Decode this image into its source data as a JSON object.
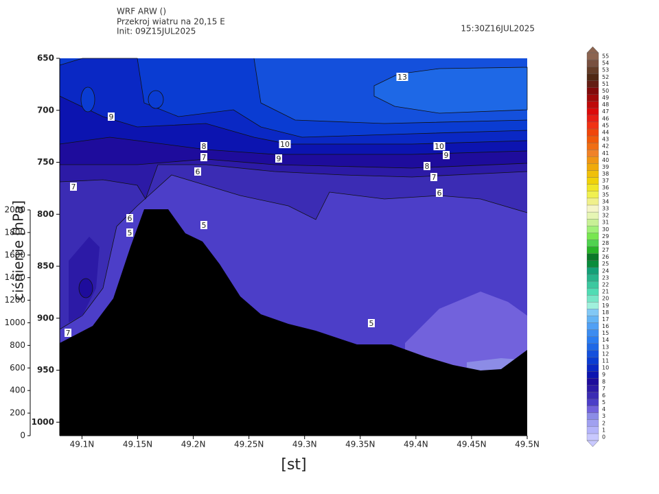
{
  "chart_data": {
    "type": "contour",
    "model": "WRF ARW ()",
    "title": "Przekroj wiatru na 20,15 E",
    "init": "Init: 09Z15JUL2025",
    "valid": "15:30Z16JUL2025",
    "xlabel": "[st]",
    "ylabel": "ciśnienie [hPa]",
    "xlim": [
      49.08,
      49.5
    ],
    "xticks": [
      {
        "value": 49.1,
        "label": "49.1N"
      },
      {
        "value": 49.15,
        "label": "49.15N"
      },
      {
        "value": 49.2,
        "label": "49.2N"
      },
      {
        "value": 49.25,
        "label": "49.25N"
      },
      {
        "value": 49.3,
        "label": "49.3N"
      },
      {
        "value": 49.35,
        "label": "49.35N"
      },
      {
        "value": 49.4,
        "label": "49.4N"
      },
      {
        "value": 49.45,
        "label": "49.45N"
      },
      {
        "value": 49.5,
        "label": "49.5N"
      }
    ],
    "ylim": [
      650,
      1013
    ],
    "y_reversed": true,
    "yticks": [
      650,
      700,
      750,
      800,
      850,
      900,
      950,
      1000
    ],
    "y2lim": [
      0,
      3343
    ],
    "y2ticks": [
      0,
      200,
      400,
      600,
      800,
      1000,
      1200,
      1400,
      1600,
      1800,
      2000
    ],
    "contour_labels": [
      13,
      9,
      10,
      9,
      8,
      7,
      6,
      7,
      6,
      5,
      5,
      10,
      9,
      8,
      7,
      6,
      5,
      7
    ],
    "colorbar": {
      "levels": [
        0,
        1,
        2,
        3,
        4,
        5,
        6,
        7,
        8,
        9,
        10,
        11,
        12,
        13,
        14,
        15,
        16,
        17,
        18,
        19,
        20,
        21,
        22,
        23,
        24,
        25,
        26,
        27,
        28,
        29,
        30,
        31,
        32,
        33,
        34,
        35,
        36,
        37,
        38,
        39,
        40,
        41,
        42,
        43,
        44,
        45,
        46,
        47,
        48,
        49,
        50,
        51,
        52,
        53,
        54,
        55
      ],
      "colors": [
        "#c8c8ff",
        "#b4b4fa",
        "#a0a0f0",
        "#8c8ce6",
        "#7262dc",
        "#4c3ec8",
        "#3b2cb4",
        "#2c1aa6",
        "#1e0c9c",
        "#0c14b0",
        "#0a28c4",
        "#0a3cd2",
        "#1450dc",
        "#1e68e6",
        "#2a7cf0",
        "#3c8cf0",
        "#50a0f5",
        "#64b4f5",
        "#82c8f5",
        "#a0f0dc",
        "#78e6c8",
        "#50dcb4",
        "#3cc8a0",
        "#28b48c",
        "#14a078",
        "#0a8c3c",
        "#0a7828",
        "#28b428",
        "#50d250",
        "#78e650",
        "#a0f078",
        "#c8f096",
        "#e6f5b4",
        "#f5f5c8",
        "#f0f08c",
        "#f0f050",
        "#f0e628",
        "#f0d20a",
        "#f0c00a",
        "#f0aa0a",
        "#f09614",
        "#f08228",
        "#f06e14",
        "#f05a0a",
        "#f0460a",
        "#f03214",
        "#e61e14",
        "#dc0a0a",
        "#be0a0a",
        "#a00a0a",
        "#820a0a",
        "#641e14",
        "#502814",
        "#643c28",
        "#785040",
        "#8c6450"
      ]
    }
  }
}
